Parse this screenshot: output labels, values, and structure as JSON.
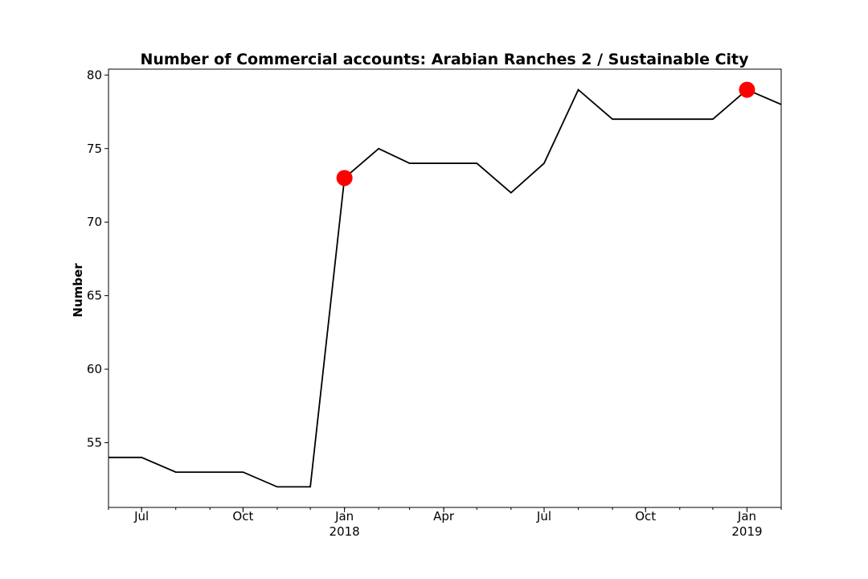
{
  "chart_data": {
    "type": "line",
    "title": "Number of Commercial accounts: Arabian Ranches 2 / Sustainable City",
    "xlabel": "",
    "ylabel": "Number",
    "ylim": [
      50.6,
      80.4
    ],
    "xlim": [
      "2017-06-01",
      "2019-02-01"
    ],
    "grid": false,
    "line_color": "#000000",
    "marker_color": "#ff0000",
    "x": [
      "2017-06-01",
      "2017-07-01",
      "2017-08-01",
      "2017-09-01",
      "2017-10-01",
      "2017-11-01",
      "2017-12-01",
      "2018-01-01",
      "2018-02-01",
      "2018-03-01",
      "2018-04-01",
      "2018-05-01",
      "2018-06-01",
      "2018-07-01",
      "2018-08-01",
      "2018-09-01",
      "2018-10-01",
      "2018-11-01",
      "2018-12-01",
      "2019-01-01",
      "2019-02-01"
    ],
    "series": [
      {
        "values": [
          54,
          54,
          53,
          53,
          53,
          52,
          52,
          73,
          75,
          74,
          74,
          74,
          72,
          74,
          79,
          77,
          77,
          77,
          77,
          79,
          78
        ]
      }
    ],
    "highlighted_points": [
      {
        "x": "2018-01-01",
        "y": 73
      },
      {
        "x": "2019-01-01",
        "y": 79
      }
    ],
    "y_ticks": [
      55,
      60,
      65,
      70,
      75,
      80
    ],
    "x_major_ticks": [
      {
        "x": "2017-07-01",
        "label": "Jul",
        "sublabel": ""
      },
      {
        "x": "2017-10-01",
        "label": "Oct",
        "sublabel": ""
      },
      {
        "x": "2018-01-01",
        "label": "Jan",
        "sublabel": "2018"
      },
      {
        "x": "2018-04-01",
        "label": "Apr",
        "sublabel": ""
      },
      {
        "x": "2018-07-01",
        "label": "Jul",
        "sublabel": ""
      },
      {
        "x": "2018-10-01",
        "label": "Oct",
        "sublabel": ""
      },
      {
        "x": "2019-01-01",
        "label": "Jan",
        "sublabel": "2019"
      }
    ]
  }
}
